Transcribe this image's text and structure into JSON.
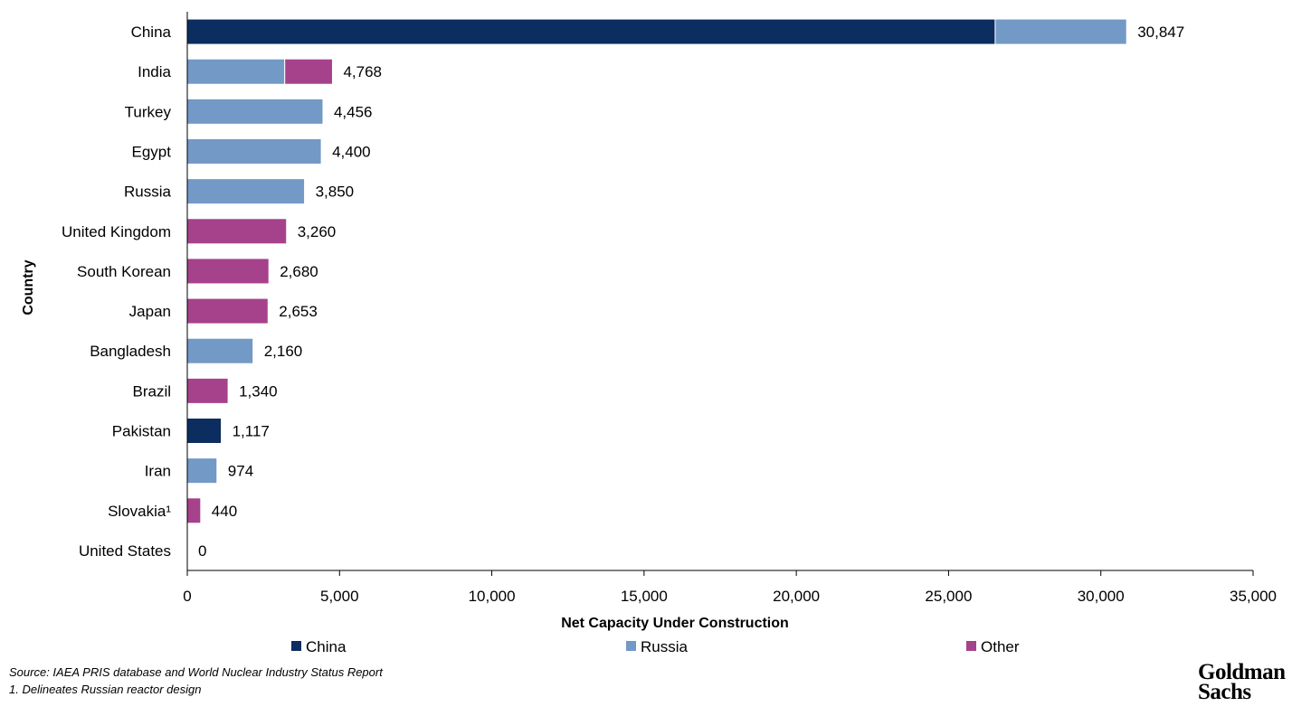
{
  "chart_data": {
    "type": "bar",
    "orientation": "horizontal",
    "stacked": true,
    "categories": [
      "China",
      "India",
      "Turkey",
      "Egypt",
      "Russia",
      "United Kingdom",
      "South Korean",
      "Japan",
      "Bangladesh",
      "Brazil",
      "Pakistan",
      "Iran",
      "Slovakia¹",
      "United States"
    ],
    "series": [
      {
        "name": "China",
        "color": "#0B2D5F",
        "values": [
          26530,
          0,
          0,
          0,
          0,
          0,
          0,
          0,
          0,
          0,
          1117,
          0,
          0,
          0
        ]
      },
      {
        "name": "Russia",
        "color": "#7399C6",
        "values": [
          4317,
          3200,
          4456,
          4400,
          3850,
          0,
          0,
          0,
          2160,
          0,
          0,
          974,
          0,
          0
        ]
      },
      {
        "name": "Other",
        "color": "#A5428B",
        "values": [
          0,
          1568,
          0,
          0,
          0,
          3260,
          2680,
          2653,
          0,
          1340,
          0,
          0,
          440,
          0
        ]
      }
    ],
    "data_labels": [
      "30,847",
      "4,768",
      "4,456",
      "4,400",
      "3,850",
      "3,260",
      "2,680",
      "2,653",
      "2,160",
      "1,340",
      "1,117",
      "974",
      "440",
      "0"
    ],
    "xlabel": "Net Capacity Under Construction",
    "ylabel": "Country",
    "xlim": [
      0,
      35000
    ],
    "xticks": [
      "0",
      "5,000",
      "10,000",
      "15,000",
      "20,000",
      "25,000",
      "30,000",
      "35,000"
    ],
    "grid": false,
    "legend_position": "bottom"
  },
  "footer": {
    "source": "Source: IAEA PRIS database and World Nuclear Industry Status Report",
    "note": "1.  Delineates Russian reactor design",
    "logo": "Goldman Sachs"
  }
}
